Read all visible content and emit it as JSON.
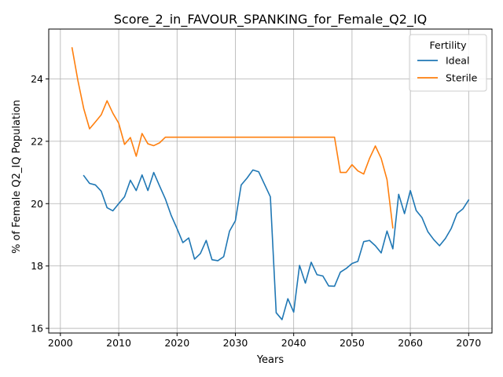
{
  "chart_data": {
    "type": "line",
    "title": "Score_2_in_FAVOUR_SPANKING_for_Female_Q2_IQ",
    "xlabel": "Years",
    "ylabel": "% of Female Q2_IQ Population",
    "xlim": [
      1998,
      2074
    ],
    "ylim": [
      15.85,
      25.6
    ],
    "xticks": [
      2000,
      2010,
      2020,
      2030,
      2040,
      2050,
      2060,
      2070
    ],
    "yticks": [
      16,
      18,
      20,
      22,
      24
    ],
    "grid": true,
    "legend": {
      "title": "Fertility",
      "placement": "top-right"
    },
    "series": [
      {
        "name": "Ideal",
        "color": "#1f77b4",
        "x": [
          2004,
          2005,
          2006,
          2007,
          2008,
          2009,
          2010,
          2011,
          2012,
          2013,
          2014,
          2015,
          2016,
          2017,
          2018,
          2019,
          2020,
          2021,
          2022,
          2023,
          2024,
          2025,
          2026,
          2027,
          2028,
          2029,
          2030,
          2031,
          2032,
          2033,
          2034,
          2035,
          2036,
          2037,
          2038,
          2039,
          2040,
          2041,
          2042,
          2043,
          2044,
          2045,
          2046,
          2047,
          2048,
          2049,
          2050,
          2051,
          2052,
          2053,
          2054,
          2055,
          2056,
          2057,
          2058,
          2059,
          2060,
          2061,
          2062,
          2063,
          2064,
          2065,
          2066,
          2067,
          2068,
          2069,
          2070
        ],
        "values": [
          20.9,
          20.65,
          20.6,
          20.4,
          19.87,
          19.77,
          20.0,
          20.22,
          20.75,
          20.42,
          20.92,
          20.42,
          21.0,
          20.57,
          20.15,
          19.62,
          19.2,
          18.75,
          18.9,
          18.22,
          18.4,
          18.82,
          18.2,
          18.17,
          18.3,
          19.12,
          19.45,
          20.6,
          20.82,
          21.08,
          21.02,
          20.62,
          20.22,
          16.5,
          16.28,
          16.95,
          16.52,
          18.02,
          17.45,
          18.12,
          17.72,
          17.68,
          17.36,
          17.35,
          17.8,
          17.92,
          18.08,
          18.15,
          18.78,
          18.82,
          18.65,
          18.42,
          19.12,
          18.55,
          20.3,
          19.68,
          20.42,
          19.78,
          19.55,
          19.1,
          18.85,
          18.65,
          18.88,
          19.2,
          19.68,
          19.83,
          20.12
        ]
      },
      {
        "name": "Sterile",
        "color": "#ff7f0e",
        "x": [
          2002,
          2003,
          2004,
          2005,
          2006,
          2007,
          2008,
          2009,
          2010,
          2011,
          2012,
          2013,
          2014,
          2015,
          2016,
          2017,
          2018,
          2019,
          2020,
          2021,
          2022,
          2023,
          2024,
          2025,
          2026,
          2027,
          2028,
          2029,
          2030,
          2031,
          2032,
          2033,
          2034,
          2035,
          2036,
          2037,
          2038,
          2039,
          2040,
          2041,
          2042,
          2043,
          2044,
          2045,
          2046,
          2047,
          2048,
          2049,
          2050,
          2051,
          2052,
          2053,
          2054,
          2055,
          2056,
          2057
        ],
        "values": [
          25.0,
          23.95,
          23.05,
          22.4,
          22.62,
          22.85,
          23.3,
          22.9,
          22.58,
          21.9,
          22.12,
          21.52,
          22.25,
          21.92,
          21.86,
          21.95,
          22.13,
          22.13,
          22.13,
          22.13,
          22.13,
          22.13,
          22.13,
          22.13,
          22.13,
          22.13,
          22.13,
          22.13,
          22.13,
          22.13,
          22.13,
          22.13,
          22.13,
          22.13,
          22.13,
          22.13,
          22.13,
          22.13,
          22.13,
          22.13,
          22.13,
          22.13,
          22.13,
          22.13,
          22.13,
          22.13,
          21.0,
          21.0,
          21.25,
          21.05,
          20.95,
          21.45,
          21.85,
          21.45,
          20.77,
          19.22
        ]
      }
    ]
  }
}
